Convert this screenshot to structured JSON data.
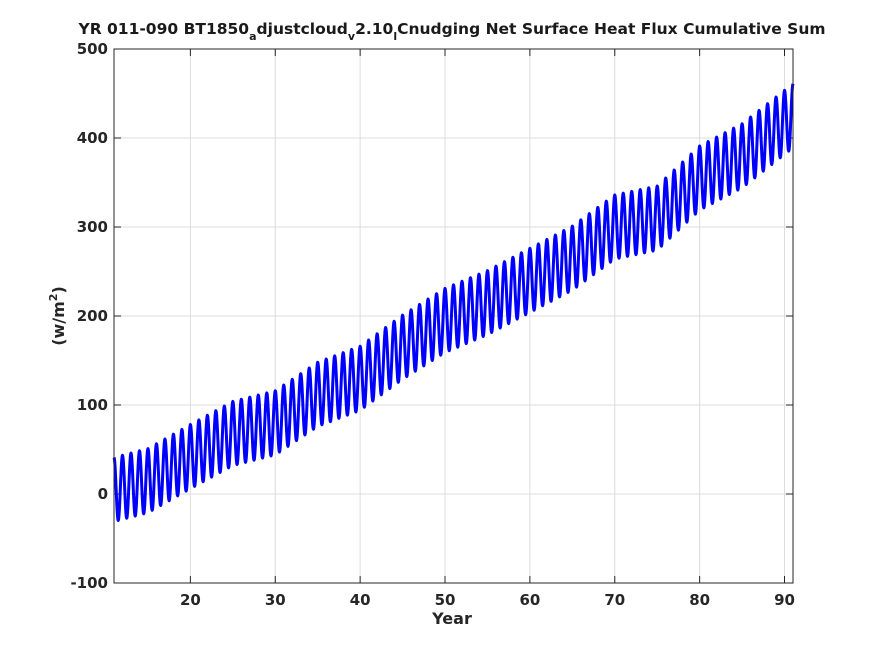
{
  "chart_data": {
    "type": "line",
    "title_parts": {
      "p1": "YR 011-090 BT1850",
      "s1": "a",
      "p2": "djustcloud",
      "s2": "v",
      "p3": "2.10",
      "s3": "l",
      "p4": "Cnudging Net Surface Heat Flux  Cumulative Sum"
    },
    "xlabel": "Year",
    "ylabel_base": "(w/m",
    "ylabel_sup": "2",
    "ylabel_close": ")",
    "xlim": [
      11,
      91
    ],
    "ylim": [
      -100,
      500
    ],
    "xticks": [
      20,
      30,
      40,
      50,
      60,
      70,
      80,
      90
    ],
    "yticks": [
      -100,
      0,
      100,
      200,
      300,
      400,
      500
    ],
    "grid": true,
    "series": [
      {
        "color": "#0000ff",
        "seasonal_cycle_amplitude": 36,
        "cycle_period_years": 1,
        "trend_x": [
          11,
          15,
          20,
          25,
          30,
          35,
          40,
          45,
          50,
          55,
          60,
          65,
          70,
          75,
          80,
          85,
          91
        ],
        "trend_y": [
          5,
          15,
          42,
          68,
          80,
          112,
          130,
          165,
          195,
          215,
          240,
          265,
          300,
          310,
          355,
          380,
          425
        ]
      }
    ]
  }
}
